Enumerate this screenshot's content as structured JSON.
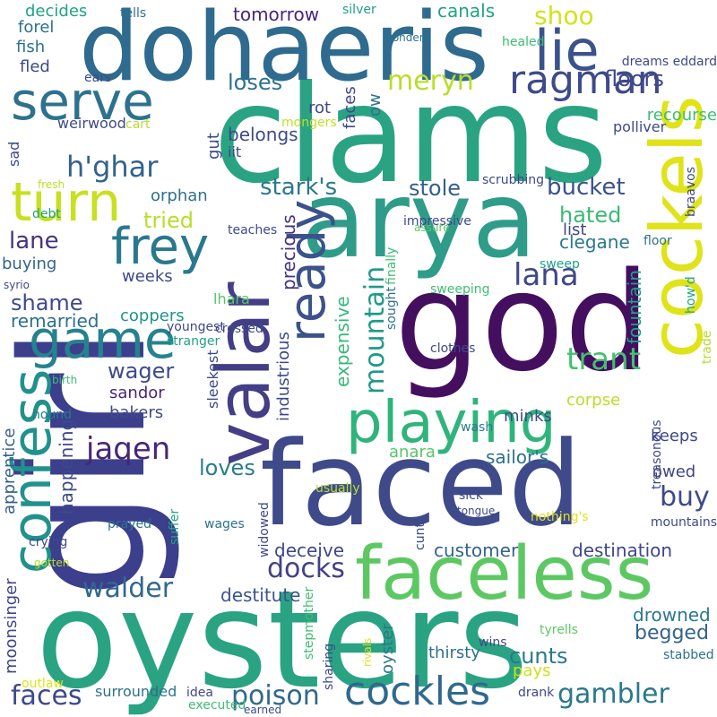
{
  "words": [
    {
      "text": "girl",
      "color": "#3b3f8c"
    },
    {
      "text": "clams",
      "color": "#2aa383"
    },
    {
      "text": "dohaeris",
      "color": "#2e6b8e"
    },
    {
      "text": "arya",
      "color": "#2f9c89"
    },
    {
      "text": "god",
      "color": "#440f5f"
    },
    {
      "text": "faced",
      "color": "#3e4a8a"
    },
    {
      "text": "oysters",
      "color": "#2aa383"
    },
    {
      "text": "faceless",
      "color": "#5dc863"
    },
    {
      "text": "cockels",
      "color": "#dfe318"
    },
    {
      "text": "valar",
      "color": "#433e85"
    },
    {
      "text": "confess",
      "color": "#21918c"
    },
    {
      "text": "playing",
      "color": "#2fb47c"
    },
    {
      "text": "ready",
      "color": "#3b528b"
    },
    {
      "text": "serve",
      "color": "#2c728e"
    },
    {
      "text": "game",
      "color": "#26828e"
    },
    {
      "text": "turn",
      "color": "#c8e020"
    },
    {
      "text": "frey",
      "color": "#2a788e"
    },
    {
      "text": "lie",
      "color": "#3b528b"
    },
    {
      "text": "cockles",
      "color": "#31688e"
    },
    {
      "text": "ragman",
      "color": "#3e4a89"
    },
    {
      "text": "walder",
      "color": "#31688e"
    },
    {
      "text": "docks",
      "color": "#424186"
    },
    {
      "text": "gambler",
      "color": "#2a788e"
    },
    {
      "text": "poison",
      "color": "#31688e"
    },
    {
      "text": "jaqen",
      "color": "#482576"
    },
    {
      "text": "trant",
      "color": "#44bf70"
    },
    {
      "text": "meryn",
      "color": "#b8de29"
    },
    {
      "text": "h'ghar",
      "color": "#33638d"
    },
    {
      "text": "lana",
      "color": "#3f4788"
    },
    {
      "text": "mountain",
      "color": "#1f9a8a"
    },
    {
      "text": "stark's",
      "color": "#2a788e"
    },
    {
      "text": "shoo",
      "color": "#d2e21b"
    },
    {
      "text": "buy",
      "color": "#3e4989"
    },
    {
      "text": "faces",
      "color": "#3e4989"
    },
    {
      "text": "lane",
      "color": "#46337e"
    },
    {
      "text": "bucket",
      "color": "#3b528b"
    },
    {
      "text": "hated",
      "color": "#3aba76"
    },
    {
      "text": "stole",
      "color": "#355f8d"
    },
    {
      "text": "loses",
      "color": "#2c728e"
    },
    {
      "text": "wager",
      "color": "#3e4989"
    },
    {
      "text": "tried",
      "color": "#b5de2b"
    },
    {
      "text": "shame",
      "color": "#3e4989"
    },
    {
      "text": "floors",
      "color": "#3f4788"
    },
    {
      "text": "loves",
      "color": "#287d8e"
    },
    {
      "text": "cunts",
      "color": "#2a788e"
    },
    {
      "text": "begged",
      "color": "#33638d"
    },
    {
      "text": "drowned",
      "color": "#2a788e"
    },
    {
      "text": "canals",
      "color": "#20a386"
    },
    {
      "text": "tomorrow",
      "color": "#482777"
    },
    {
      "text": "precious",
      "color": "#463480"
    },
    {
      "text": "industrious",
      "color": "#3e4989"
    },
    {
      "text": "expensive",
      "color": "#37b878"
    },
    {
      "text": "fountain",
      "color": "#1fa088"
    },
    {
      "text": "happening",
      "color": "#3e4989"
    },
    {
      "text": "apprentice",
      "color": "#355f8d"
    },
    {
      "text": "moonsinger",
      "color": "#3f4788"
    },
    {
      "text": "remarried",
      "color": "#2d708e"
    },
    {
      "text": "destination",
      "color": "#3f4788"
    },
    {
      "text": "destitute",
      "color": "#39558c"
    },
    {
      "text": "customer",
      "color": "#33638d"
    },
    {
      "text": "deceive",
      "color": "#3f4788"
    },
    {
      "text": "sailor's",
      "color": "#2d708e"
    },
    {
      "text": "sandor",
      "color": "#482576"
    },
    {
      "text": "bakers",
      "color": "#3e4989"
    },
    {
      "text": "corpse",
      "color": "#bade28"
    },
    {
      "text": "minks",
      "color": "#3e4989"
    },
    {
      "text": "keeps",
      "color": "#3f4788"
    },
    {
      "text": "owed",
      "color": "#3f4788"
    },
    {
      "text": "coppers",
      "color": "#20928c"
    },
    {
      "text": "clegane",
      "color": "#2a788e"
    },
    {
      "text": "list",
      "color": "#3f4788"
    },
    {
      "text": "buying",
      "color": "#33638d"
    },
    {
      "text": "orphan",
      "color": "#2c728e"
    },
    {
      "text": "belongs",
      "color": "#3e4989"
    },
    {
      "text": "rot",
      "color": "#3f4788"
    },
    {
      "text": "decides",
      "color": "#20a386"
    },
    {
      "text": "fish",
      "color": "#2c728e"
    },
    {
      "text": "fled",
      "color": "#3e4989"
    },
    {
      "text": "forel",
      "color": "#2d708e"
    },
    {
      "text": "oyster",
      "color": "#2a788e"
    },
    {
      "text": "anara",
      "color": "#56c667"
    },
    {
      "text": "pays",
      "color": "#cde11d"
    },
    {
      "text": "thirsty",
      "color": "#2d708e"
    },
    {
      "text": "faces2",
      "color": "#3e4989"
    },
    {
      "text": "ow",
      "color": "#2d708e"
    },
    {
      "text": "gut",
      "color": "#3e4989"
    },
    {
      "text": "iit",
      "color": "#3e4989"
    },
    {
      "text": "sad",
      "color": "#3e4989"
    },
    {
      "text": "recourse",
      "color": "#3fbc73"
    },
    {
      "text": "polliver",
      "color": "#3e4989"
    },
    {
      "text": "mongers",
      "color": "#c2df23"
    },
    {
      "text": "weirwood",
      "color": "#3e4989"
    },
    {
      "text": "cart",
      "color": "#b5de2b"
    },
    {
      "text": "ears",
      "color": "#3e4989"
    },
    {
      "text": "tells",
      "color": "#2d708e"
    },
    {
      "text": "silver",
      "color": "#1fa088"
    },
    {
      "text": "wonders",
      "color": "#2c728e"
    },
    {
      "text": "healed",
      "color": "#3fbc73"
    },
    {
      "text": "dreams eddard",
      "color": "#3e4989"
    },
    {
      "text": "braavos",
      "color": "#3e4989"
    },
    {
      "text": "scrubbing",
      "color": "#3e4989"
    },
    {
      "text": "fresh",
      "color": "#bade28"
    },
    {
      "text": "debt",
      "color": "#20a386"
    },
    {
      "text": "teaches",
      "color": "#3e4989"
    },
    {
      "text": "impressive",
      "color": "#3e4989"
    },
    {
      "text": "finally",
      "color": "#3fbc73"
    },
    {
      "text": "assure",
      "color": "#5ec962"
    },
    {
      "text": "floor",
      "color": "#2c728e"
    },
    {
      "text": "weeks",
      "color": "#3e4989"
    },
    {
      "text": "syrio",
      "color": "#3e4989"
    },
    {
      "text": "lhara",
      "color": "#56c667"
    },
    {
      "text": "sweep",
      "color": "#1fa088"
    },
    {
      "text": "sweeping",
      "color": "#3fbc73"
    },
    {
      "text": "how'd",
      "color": "#20a386"
    },
    {
      "text": "trade",
      "color": "#b5de2b"
    },
    {
      "text": "sought",
      "color": "#2c728e"
    },
    {
      "text": "clothes",
      "color": "#3e4989"
    },
    {
      "text": "crossed",
      "color": "#3e4989"
    },
    {
      "text": "youngest",
      "color": "#3e4989"
    },
    {
      "text": "stranger",
      "color": "#20a386"
    },
    {
      "text": "sleekest",
      "color": "#3e4989"
    },
    {
      "text": "birth",
      "color": "#3fbc73"
    },
    {
      "text": "hound",
      "color": "#2a788e"
    },
    {
      "text": "wash",
      "color": "#2a788e"
    },
    {
      "text": "treasonous",
      "color": "#3e4989"
    },
    {
      "text": "prayed",
      "color": "#2c728e"
    },
    {
      "text": "suffer",
      "color": "#20a386"
    },
    {
      "text": "wages",
      "color": "#2c728e"
    },
    {
      "text": "widowed",
      "color": "#3e4989"
    },
    {
      "text": "usually",
      "color": "#bade28"
    },
    {
      "text": "sick",
      "color": "#3e4989"
    },
    {
      "text": "tongue",
      "color": "#3e4989"
    },
    {
      "text": "cunt",
      "color": "#3e4989"
    },
    {
      "text": "nothing's",
      "color": "#dfe318"
    },
    {
      "text": "mountains",
      "color": "#3e4989"
    },
    {
      "text": "crying",
      "color": "#3e4989"
    },
    {
      "text": "gotten",
      "color": "#b5de2b"
    },
    {
      "text": "stepmother",
      "color": "#3fbc73"
    },
    {
      "text": "rivals",
      "color": "#dfe318"
    },
    {
      "text": "sharing",
      "color": "#3e4989"
    },
    {
      "text": "wins",
      "color": "#3e4989"
    },
    {
      "text": "tyrells",
      "color": "#5ec962"
    },
    {
      "text": "stabbed",
      "color": "#2c728e"
    },
    {
      "text": "outlaw",
      "color": "#dfe318"
    },
    {
      "text": "surrounded",
      "color": "#2c728e"
    },
    {
      "text": "idea",
      "color": "#3e4989"
    },
    {
      "text": "executed",
      "color": "#3fbc73"
    },
    {
      "text": "earned",
      "color": "#3e4989"
    },
    {
      "text": "drank",
      "color": "#3e4989"
    },
    {
      "text": "statue",
      "color": "#dfe318"
    },
    {
      "text": "harbor",
      "color": "#3e4989"
    },
    {
      "text": "drove",
      "color": "#3e4989"
    },
    {
      "text": "wounded",
      "color": "#dfe318"
    },
    {
      "text": "hall",
      "color": "#3e4989"
    }
  ]
}
